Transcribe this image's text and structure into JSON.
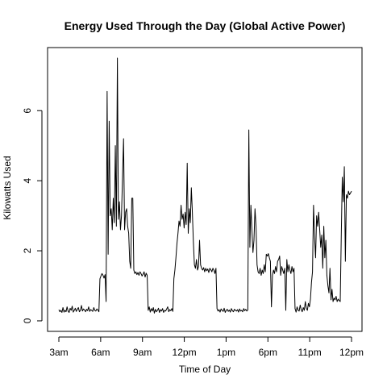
{
  "chart_data": {
    "type": "line",
    "title": "Energy Used Through the Day (Global Active Power)",
    "xlabel": "Time of Day",
    "ylabel": "Kilowatts Used",
    "x_ticks": [
      "3am",
      "6am",
      "9am",
      "12pm",
      "1pm",
      "6pm",
      "11pm",
      "12pm"
    ],
    "y_ticks": [
      0,
      2,
      4,
      6
    ],
    "ylim": [
      -0.3,
      7.8
    ],
    "grid": false,
    "legend": "none",
    "colors": {
      "line": "#000000",
      "axis": "#000000",
      "background": "#ffffff"
    },
    "series": [
      {
        "values": [
          0.32,
          0.26,
          0.3,
          0.24,
          0.38,
          0.25,
          0.3,
          0.26,
          0.4,
          0.28,
          0.24,
          0.36,
          0.3,
          0.42,
          0.25,
          0.3,
          0.36,
          0.27,
          0.33,
          0.38,
          0.26,
          0.3,
          0.44,
          0.28,
          0.34,
          0.31,
          0.26,
          0.33,
          0.29,
          0.4,
          0.27,
          0.32,
          0.3,
          0.27,
          0.38,
          0.3,
          0.28,
          0.34,
          0.31,
          0.26,
          1.2,
          1.28,
          1.35,
          1.3,
          1.22,
          1.32,
          0.55,
          6.55,
          1.9,
          5.7,
          3.0,
          3.2,
          2.6,
          3.5,
          2.8,
          5.0,
          2.7,
          7.5,
          2.9,
          3.4,
          2.6,
          3.0,
          4.1,
          5.2,
          2.6,
          3.1,
          3.2,
          2.7,
          2.5,
          1.7,
          1.5,
          3.5,
          3.5,
          1.45,
          1.35,
          1.4,
          1.32,
          1.38,
          1.3,
          1.4,
          1.35,
          1.28,
          1.33,
          1.4,
          1.25,
          1.36,
          1.3,
          0.3,
          0.4,
          0.25,
          0.35,
          0.28,
          0.38,
          0.22,
          0.33,
          0.26,
          0.3,
          0.36,
          0.24,
          0.32,
          0.28,
          0.35,
          0.24,
          0.3,
          0.28,
          0.34,
          0.4,
          0.26,
          0.32,
          0.29,
          0.35,
          0.27,
          1.2,
          1.45,
          1.8,
          2.2,
          2.5,
          2.85,
          2.7,
          3.3,
          2.9,
          3.05,
          2.65,
          3.1,
          2.75,
          4.5,
          2.5,
          3.2,
          2.8,
          3.8,
          3.1,
          2.25,
          1.6,
          1.5,
          1.75,
          1.45,
          1.55,
          2.3,
          1.6,
          1.5,
          1.45,
          1.52,
          1.4,
          1.5,
          1.43,
          1.48,
          1.38,
          1.5,
          1.46,
          1.4,
          1.5,
          1.45,
          1.35,
          1.5,
          0.35,
          0.28,
          0.32,
          0.25,
          0.34,
          0.3,
          0.27,
          0.36,
          0.24,
          0.3,
          0.33,
          0.27,
          0.31,
          0.25,
          0.35,
          0.29,
          0.26,
          0.33,
          0.3,
          0.28,
          0.32,
          0.25,
          0.34,
          0.28,
          0.3,
          0.26,
          0.35,
          0.29,
          0.33,
          0.28,
          0.31,
          5.45,
          2.1,
          3.3,
          2.6,
          1.95,
          2.3,
          3.2,
          2.7,
          1.6,
          1.4,
          1.35,
          1.5,
          1.3,
          1.45,
          1.35,
          1.6,
          1.4,
          1.9,
          1.85,
          1.92,
          1.8,
          1.7,
          0.4,
          1.3,
          1.45,
          1.35,
          1.55,
          1.4,
          1.7,
          1.75,
          1.85,
          1.3,
          1.55,
          1.45,
          1.35,
          1.5,
          0.3,
          1.75,
          1.4,
          1.6,
          1.45,
          1.35,
          1.55,
          1.4,
          1.5,
          0.35,
          0.25,
          0.4,
          0.3,
          0.28,
          0.45,
          0.32,
          0.26,
          0.38,
          0.3,
          0.55,
          0.36,
          0.3,
          0.5,
          0.4,
          0.62,
          1.1,
          1.4,
          3.3,
          2.4,
          1.8,
          3.0,
          2.7,
          3.1,
          2.6,
          2.1,
          2.45,
          1.5,
          2.7,
          1.8,
          2.3,
          1.3,
          1.0,
          0.8,
          1.5,
          0.6,
          0.9,
          0.55,
          0.65,
          0.6,
          0.7,
          0.55,
          0.62,
          0.58,
          0.55,
          2.4,
          4.1,
          3.4,
          4.4,
          1.7,
          3.6,
          3.5,
          3.7,
          3.6,
          3.65,
          3.7
        ]
      }
    ]
  }
}
